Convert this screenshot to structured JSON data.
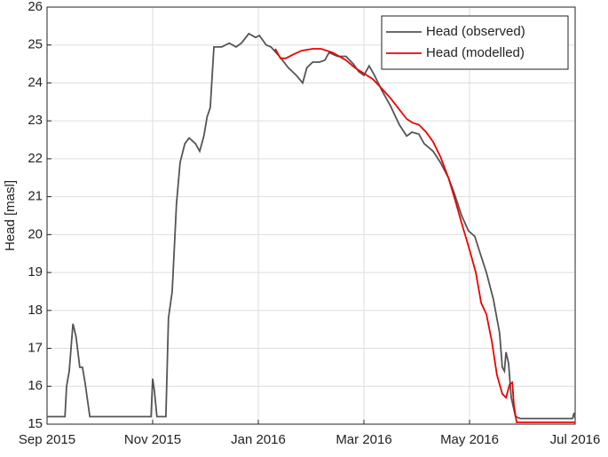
{
  "chart_data": {
    "type": "line",
    "ylabel": "Head [masl]",
    "xlim": [
      0,
      10
    ],
    "xticks": [
      {
        "value": 0,
        "label": "Sep 2015"
      },
      {
        "value": 2,
        "label": "Nov 2015"
      },
      {
        "value": 4,
        "label": "Jan 2016"
      },
      {
        "value": 6,
        "label": "Mar 2016"
      },
      {
        "value": 8,
        "label": "May 2016"
      },
      {
        "value": 10,
        "label": "Jul 2016"
      }
    ],
    "ylim": [
      15,
      26
    ],
    "yticks": [
      15,
      16,
      17,
      18,
      19,
      20,
      21,
      22,
      23,
      24,
      25,
      26
    ],
    "grid": true,
    "legend": "upper right",
    "series": [
      {
        "name": "Head (observed)",
        "color": "#555555",
        "x": [
          0,
          0.34,
          0.37,
          0.42,
          0.49,
          0.55,
          0.62,
          0.67,
          0.72,
          0.81,
          1.97,
          2.0,
          2.03,
          2.08,
          2.25,
          2.3,
          2.37,
          2.45,
          2.52,
          2.61,
          2.69,
          2.81,
          2.89,
          2.97,
          3.03,
          3.09,
          3.16,
          3.31,
          3.45,
          3.58,
          3.68,
          3.82,
          3.95,
          4.02,
          4.15,
          4.24,
          4.4,
          4.57,
          4.72,
          4.84,
          4.92,
          5.03,
          5.16,
          5.26,
          5.34,
          5.5,
          5.66,
          5.8,
          5.9,
          6.0,
          6.1,
          6.2,
          6.34,
          6.5,
          6.67,
          6.81,
          6.91,
          7.04,
          7.14,
          7.31,
          7.45,
          7.6,
          7.71,
          7.85,
          7.98,
          8.1,
          8.18,
          8.32,
          8.45,
          8.57,
          8.62,
          8.66,
          8.69,
          8.74,
          8.79,
          8.87,
          8.96,
          9.19,
          9.53,
          9.95,
          9.98,
          10.0
        ],
        "values": [
          15.2,
          15.2,
          16.0,
          16.4,
          17.65,
          17.3,
          16.5,
          16.5,
          16.1,
          15.2,
          15.2,
          16.2,
          15.9,
          15.2,
          15.2,
          17.8,
          18.5,
          20.8,
          21.9,
          22.4,
          22.55,
          22.4,
          22.2,
          22.6,
          23.1,
          23.35,
          24.95,
          24.95,
          25.05,
          24.95,
          25.05,
          25.3,
          25.2,
          25.25,
          25.0,
          24.95,
          24.7,
          24.4,
          24.2,
          24.0,
          24.4,
          24.55,
          24.55,
          24.6,
          24.8,
          24.7,
          24.7,
          24.5,
          24.3,
          24.2,
          24.45,
          24.2,
          23.8,
          23.4,
          22.9,
          22.6,
          22.7,
          22.65,
          22.4,
          22.2,
          21.9,
          21.5,
          21.1,
          20.5,
          20.1,
          19.95,
          19.6,
          19.0,
          18.3,
          17.4,
          16.5,
          16.4,
          16.9,
          16.6,
          15.7,
          15.2,
          15.15,
          15.15,
          15.15,
          15.15,
          15.3,
          15.15
        ]
      },
      {
        "name": "Head (modelled)",
        "color": "#ee0000",
        "x": [
          4.32,
          4.42,
          4.52,
          4.66,
          4.82,
          5.03,
          5.19,
          5.41,
          5.66,
          5.83,
          6.0,
          6.17,
          6.34,
          6.5,
          6.67,
          6.81,
          6.92,
          7.04,
          7.18,
          7.31,
          7.45,
          7.6,
          7.73,
          7.85,
          7.98,
          8.12,
          8.22,
          8.32,
          8.42,
          8.52,
          8.62,
          8.69,
          8.76,
          8.81,
          8.84,
          8.89,
          10.0
        ],
        "values": [
          24.9,
          24.65,
          24.65,
          24.75,
          24.85,
          24.9,
          24.9,
          24.8,
          24.6,
          24.4,
          24.25,
          24.1,
          23.85,
          23.6,
          23.3,
          23.05,
          22.95,
          22.9,
          22.7,
          22.45,
          22.05,
          21.5,
          20.9,
          20.3,
          19.7,
          19.0,
          18.2,
          17.9,
          17.2,
          16.3,
          15.8,
          15.7,
          16.05,
          16.1,
          15.5,
          15.05,
          15.05
        ]
      }
    ]
  }
}
